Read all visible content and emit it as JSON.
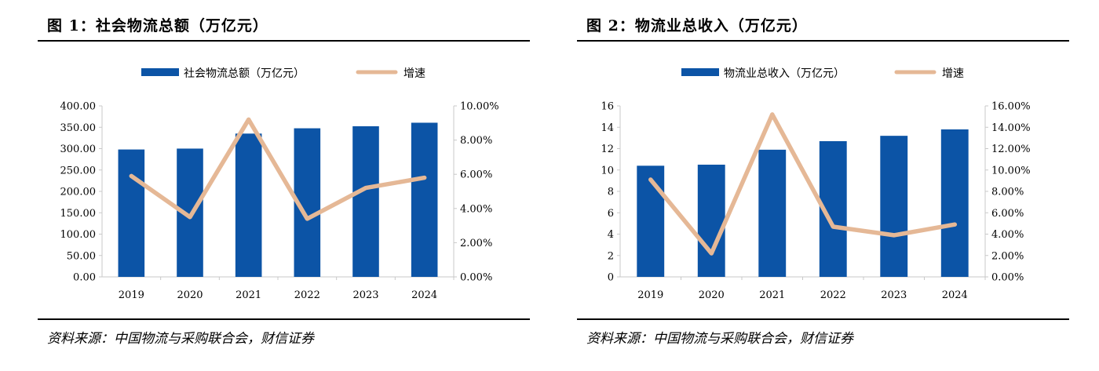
{
  "charts": [
    {
      "title": "图 1：社会物流总额（万亿元）",
      "source": "资料来源：中国物流与采购联合会，财信证券",
      "legend": {
        "bar_label": "社会物流总额（万亿元）",
        "line_label": "增速"
      }
    },
    {
      "title": "图 2：物流业总收入（万亿元）",
      "source": "资料来源：中国物流与采购联合会，财信证券",
      "legend": {
        "bar_label": "物流业总收入（万亿元）",
        "line_label": "增速"
      }
    }
  ],
  "colors": {
    "bar": "#0c54a6",
    "line": "#e5b896",
    "axis": "#c8c8c8"
  },
  "chart_data": [
    {
      "type": "bar",
      "title": "",
      "categories": [
        "2019",
        "2020",
        "2021",
        "2022",
        "2023",
        "2024"
      ],
      "series": [
        {
          "name": "社会物流总额（万亿元）",
          "type": "bar",
          "axis": "left",
          "values": [
            298.0,
            300.1,
            335.2,
            347.6,
            352.4,
            360.6
          ]
        },
        {
          "name": "增速",
          "type": "line",
          "axis": "right",
          "values": [
            0.059,
            0.035,
            0.092,
            0.034,
            0.052,
            0.058
          ]
        }
      ],
      "ylim_left": [
        0,
        400
      ],
      "yticks_left": [
        "0.00",
        "50.00",
        "100.00",
        "150.00",
        "200.00",
        "250.00",
        "300.00",
        "350.00",
        "400.00"
      ],
      "ylim_right": [
        0,
        0.1
      ],
      "yticks_right": [
        "0.00%",
        "2.00%",
        "4.00%",
        "6.00%",
        "8.00%",
        "10.00%"
      ],
      "grid": false,
      "legend_position": "top"
    },
    {
      "type": "bar",
      "title": "",
      "categories": [
        "2019",
        "2020",
        "2021",
        "2022",
        "2023",
        "2024"
      ],
      "series": [
        {
          "name": "物流业总收入（万亿元）",
          "type": "bar",
          "axis": "left",
          "values": [
            10.4,
            10.5,
            11.9,
            12.7,
            13.2,
            13.8
          ]
        },
        {
          "name": "增速",
          "type": "line",
          "axis": "right",
          "values": [
            0.091,
            0.022,
            0.152,
            0.047,
            0.039,
            0.049
          ]
        }
      ],
      "ylim_left": [
        0,
        16
      ],
      "yticks_left": [
        "0",
        "2",
        "4",
        "6",
        "8",
        "10",
        "12",
        "14",
        "16"
      ],
      "ylim_right": [
        0,
        0.16
      ],
      "yticks_right": [
        "0.00%",
        "2.00%",
        "4.00%",
        "6.00%",
        "8.00%",
        "10.00%",
        "12.00%",
        "14.00%",
        "16.00%"
      ],
      "grid": false,
      "legend_position": "top"
    }
  ]
}
